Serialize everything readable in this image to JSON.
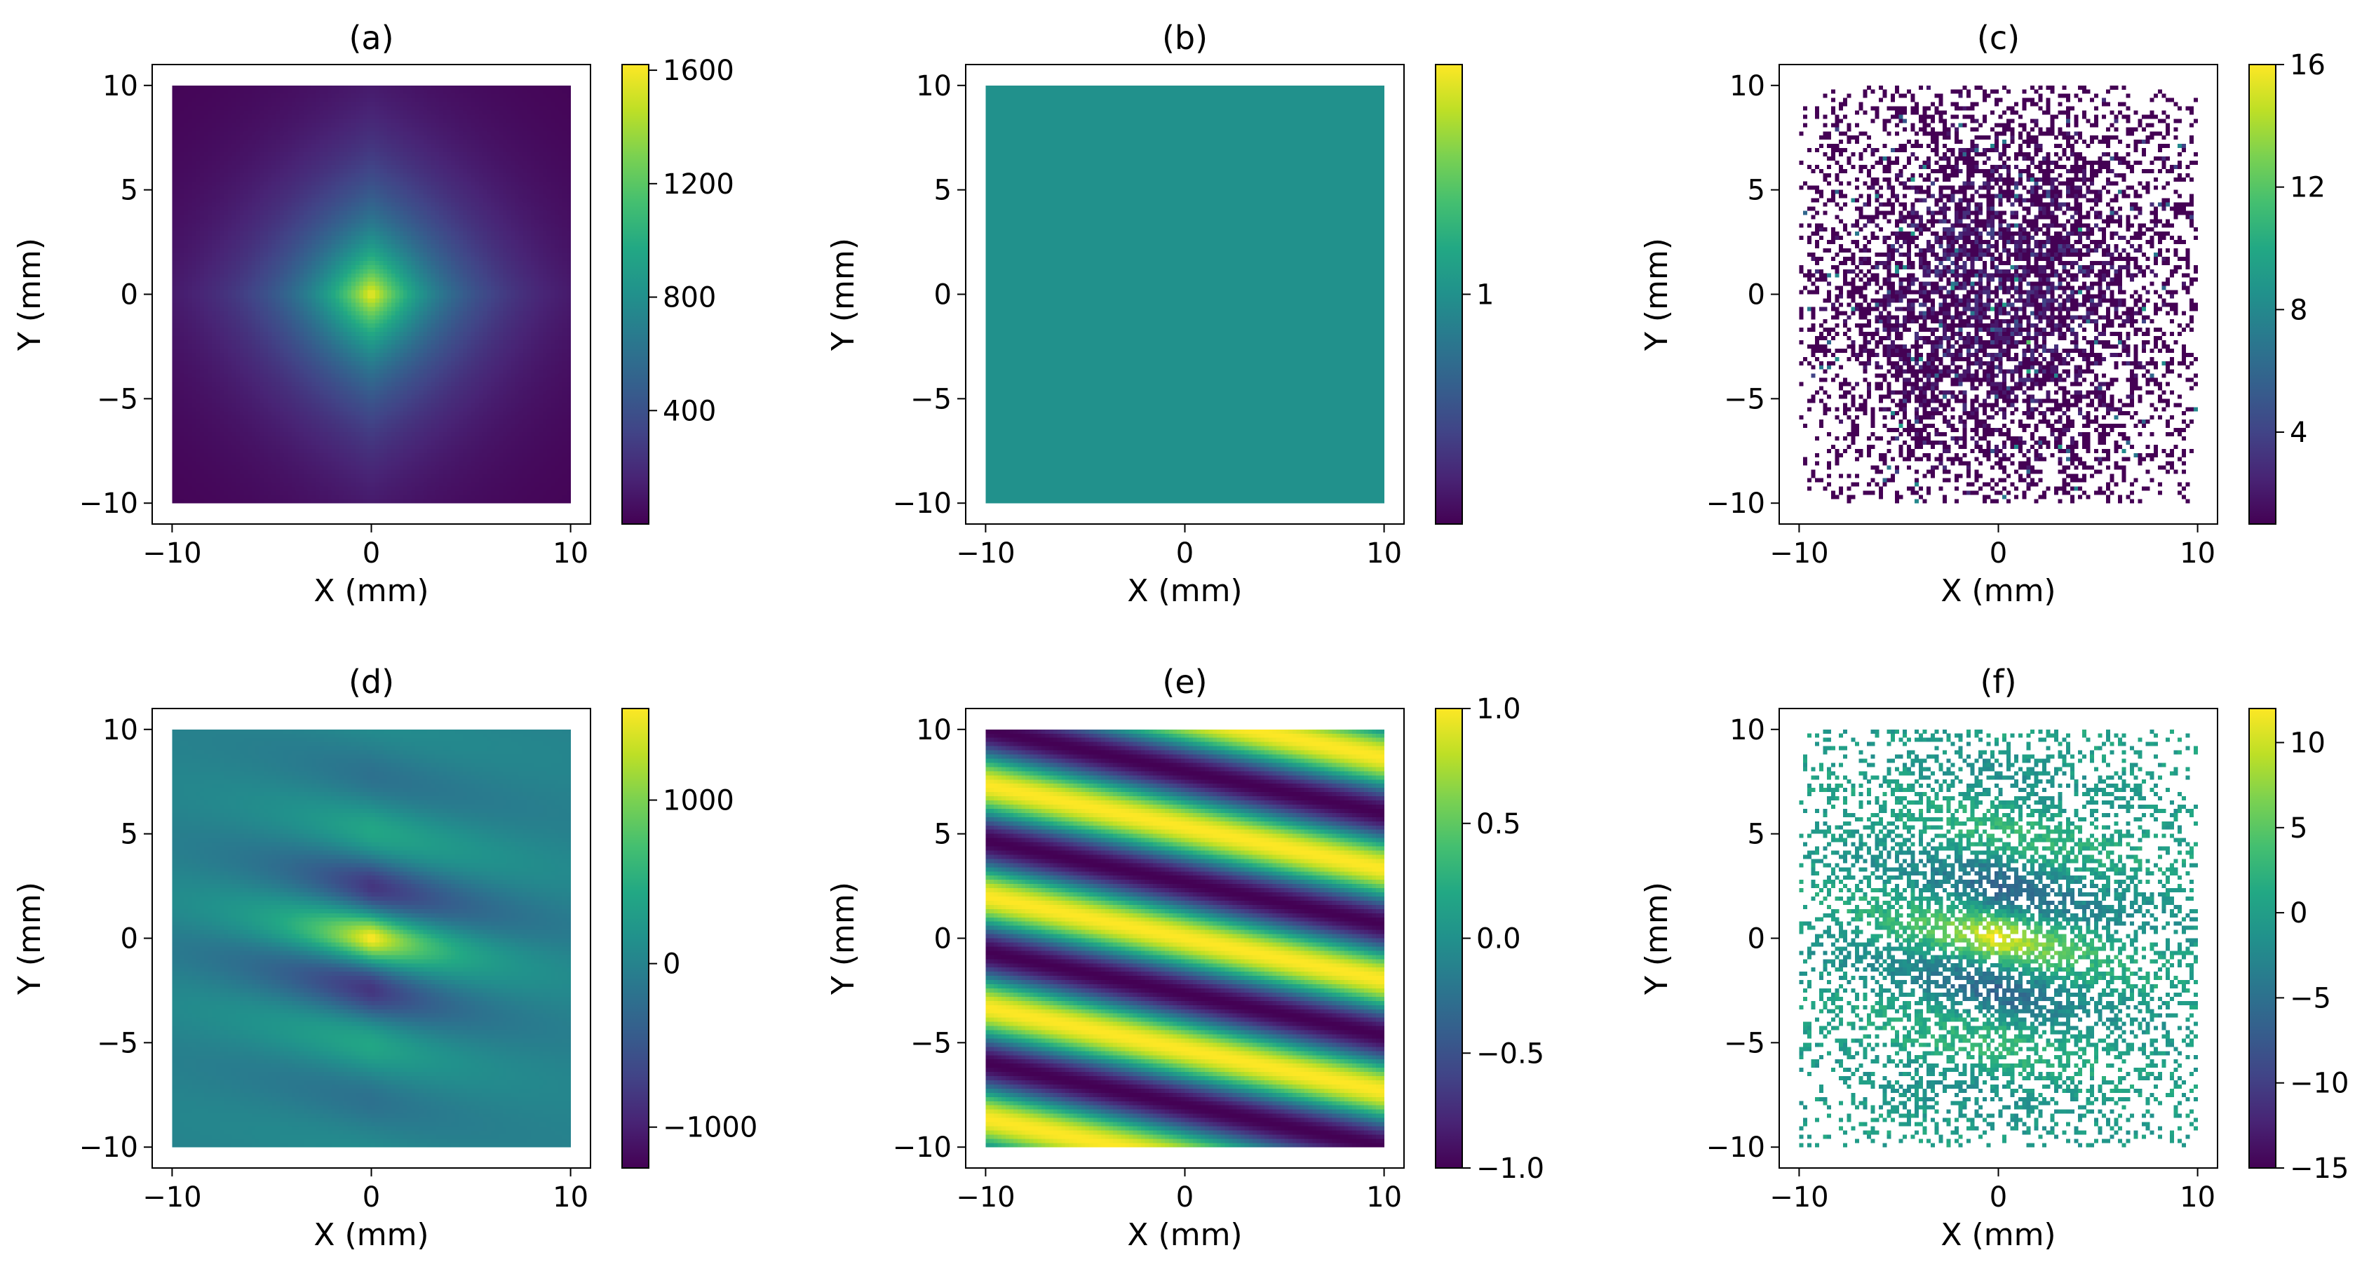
{
  "figure": {
    "colormap": "viridis",
    "panels_count": 6
  },
  "chart_data": [
    {
      "id": "a",
      "title": "(a)",
      "type": "heatmap",
      "xlabel": "X (mm)",
      "ylabel": "Y (mm)",
      "xlim": [
        -11,
        11
      ],
      "ylim": [
        -11,
        11
      ],
      "xticks": [
        -10,
        0,
        10
      ],
      "yticks": [
        -10,
        -5,
        0,
        5,
        10
      ],
      "colorbar": {
        "min": 0,
        "max": 1620,
        "ticks": [
          400,
          800,
          1200,
          1600
        ],
        "tick_labels": [
          "400",
          "800",
          "1200",
          "1600"
        ]
      },
      "pattern": "central peak (~1600 at origin) decaying outward, diamond-shaped core, minimum ~0 at corners"
    },
    {
      "id": "b",
      "title": "(b)",
      "type": "heatmap",
      "xlabel": "X (mm)",
      "ylabel": "Y (mm)",
      "xlim": [
        -11,
        11
      ],
      "ylim": [
        -11,
        11
      ],
      "xticks": [
        -10,
        0,
        10
      ],
      "yticks": [
        -10,
        -5,
        0,
        5,
        10
      ],
      "colorbar": {
        "min": 0.95,
        "max": 1.05,
        "ticks": [
          1
        ],
        "tick_labels": [
          "1"
        ]
      },
      "pattern": "uniform value 1 across entire field"
    },
    {
      "id": "c",
      "title": "(c)",
      "type": "heatmap",
      "xlabel": "X (mm)",
      "ylabel": "Y (mm)",
      "xlim": [
        -11,
        11
      ],
      "ylim": [
        -11,
        11
      ],
      "xticks": [
        -10,
        0,
        10
      ],
      "yticks": [
        -10,
        -5,
        0,
        5,
        10
      ],
      "colorbar": {
        "min": 1,
        "max": 16,
        "ticks": [
          4,
          8,
          12,
          16
        ],
        "tick_labels": [
          "4",
          "8",
          "12",
          "16"
        ]
      },
      "pattern": "sparse random counts (mostly 1-3), denser near center, empty bins white"
    },
    {
      "id": "d",
      "title": "(d)",
      "type": "heatmap",
      "xlabel": "X (mm)",
      "ylabel": "Y (mm)",
      "xlim": [
        -11,
        11
      ],
      "ylim": [
        -11,
        11
      ],
      "xticks": [
        -10,
        0,
        10
      ],
      "yticks": [
        -10,
        -5,
        0,
        5,
        10
      ],
      "colorbar": {
        "min": -1250,
        "max": 1560,
        "ticks": [
          -1000,
          0,
          1000
        ],
        "tick_labels": [
          "−1000",
          "0",
          "1000"
        ]
      },
      "pattern": "product of (a) and (e): tilted fringes with central amplitude ~1500"
    },
    {
      "id": "e",
      "title": "(e)",
      "type": "heatmap",
      "xlabel": "X (mm)",
      "ylabel": "Y (mm)",
      "xlim": [
        -11,
        11
      ],
      "ylim": [
        -11,
        11
      ],
      "xticks": [
        -10,
        0,
        10
      ],
      "yticks": [
        -10,
        -5,
        0,
        5,
        10
      ],
      "colorbar": {
        "min": -1.0,
        "max": 1.0,
        "ticks": [
          -1.0,
          -0.5,
          0.0,
          0.5,
          1.0
        ],
        "tick_labels": [
          "−1.0",
          "−0.5",
          "0.0",
          "0.5",
          "1.0"
        ]
      },
      "pattern": "cos(1.18*(y + 0.2*x)) tilted fringes, range -1 to 1"
    },
    {
      "id": "f",
      "title": "(f)",
      "type": "heatmap",
      "xlabel": "X (mm)",
      "ylabel": "Y (mm)",
      "xlim": [
        -11,
        11
      ],
      "ylim": [
        -11,
        11
      ],
      "xticks": [
        -10,
        0,
        10
      ],
      "yticks": [
        -10,
        -5,
        0,
        5,
        10
      ],
      "colorbar": {
        "min": -15,
        "max": 12,
        "ticks": [
          -15,
          -10,
          -5,
          0,
          5,
          10
        ],
        "tick_labels": [
          "−15",
          "−10",
          "−5",
          "0",
          "5",
          "10"
        ]
      },
      "pattern": "sparse sampled fringes of (d), values mostly -5 to 10, empty bins white"
    }
  ]
}
